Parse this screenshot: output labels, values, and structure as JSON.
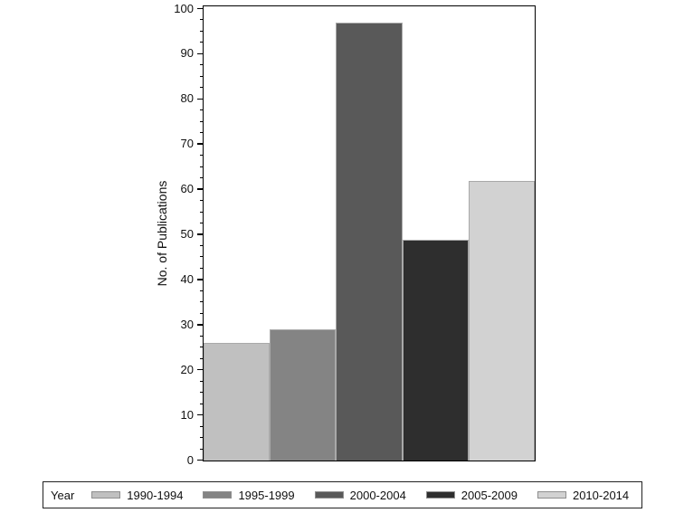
{
  "chart_data": {
    "type": "bar",
    "title": "",
    "xlabel": "",
    "ylabel": "No. of Publications",
    "ylim": [
      0,
      100
    ],
    "y_major_tick": 10,
    "y_minor_tick": 2.5,
    "grid": false,
    "legend_title": "Year",
    "legend_position": "bottom",
    "categories": [
      "1990-1994",
      "1995-1999",
      "2000-2004",
      "2005-2009",
      "2010-2014"
    ],
    "values": [
      26,
      29,
      97,
      49,
      62
    ],
    "bar_colors": [
      "#c0c0c0",
      "#848484",
      "#595959",
      "#2e2e2e",
      "#d2d2d2"
    ],
    "bar_border_color": "#a9a9a9",
    "axis_color": "#000000",
    "text_color": "#111111",
    "background_color": "#ffffff"
  }
}
